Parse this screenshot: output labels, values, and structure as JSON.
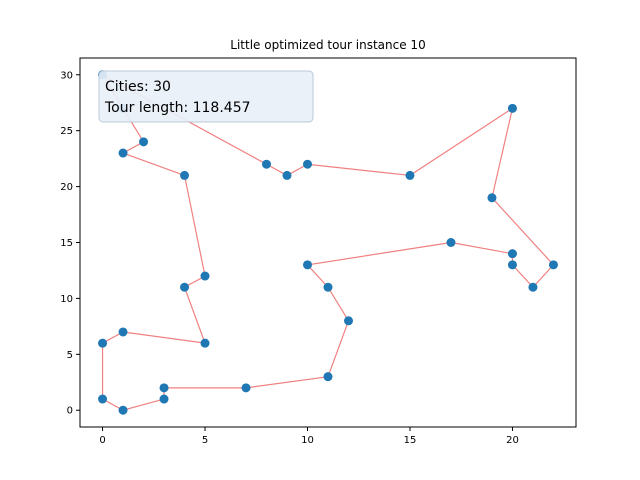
{
  "chart_data": {
    "type": "scatter",
    "title": "Little optimized tour instance 10",
    "xlabel": "",
    "ylabel": "",
    "xlim": [
      -1.1,
      23.1
    ],
    "ylim": [
      -1.5,
      31.5
    ],
    "xticks": [
      0,
      5,
      10,
      15,
      20
    ],
    "yticks": [
      0,
      5,
      10,
      15,
      20,
      25,
      30
    ],
    "grid": false,
    "annotation": {
      "cities_text": "Cities: 30",
      "length_text": "Tour length: 118.457"
    },
    "colors": {
      "point": "#1f77b4",
      "tour_line": "#f08080",
      "annotation_bg": "#e8f0f8",
      "annotation_border": "#b9c9d9"
    },
    "tour_closed": true,
    "points": [
      {
        "x": 0,
        "y": 30
      },
      {
        "x": 8,
        "y": 22
      },
      {
        "x": 9,
        "y": 21
      },
      {
        "x": 10,
        "y": 22
      },
      {
        "x": 15,
        "y": 21
      },
      {
        "x": 20,
        "y": 27
      },
      {
        "x": 19,
        "y": 19
      },
      {
        "x": 22,
        "y": 13
      },
      {
        "x": 21,
        "y": 11
      },
      {
        "x": 20,
        "y": 13
      },
      {
        "x": 20,
        "y": 14
      },
      {
        "x": 17,
        "y": 15
      },
      {
        "x": 10,
        "y": 13
      },
      {
        "x": 11,
        "y": 11
      },
      {
        "x": 12,
        "y": 8
      },
      {
        "x": 11,
        "y": 3
      },
      {
        "x": 7,
        "y": 2
      },
      {
        "x": 3,
        "y": 2
      },
      {
        "x": 3,
        "y": 1
      },
      {
        "x": 1,
        "y": 0
      },
      {
        "x": 0,
        "y": 1
      },
      {
        "x": 0,
        "y": 6
      },
      {
        "x": 1,
        "y": 7
      },
      {
        "x": 5,
        "y": 6
      },
      {
        "x": 4,
        "y": 11
      },
      {
        "x": 5,
        "y": 12
      },
      {
        "x": 4,
        "y": 21
      },
      {
        "x": 1,
        "y": 23
      },
      {
        "x": 2,
        "y": 24
      },
      {
        "x": 1,
        "y": 27
      }
    ]
  }
}
